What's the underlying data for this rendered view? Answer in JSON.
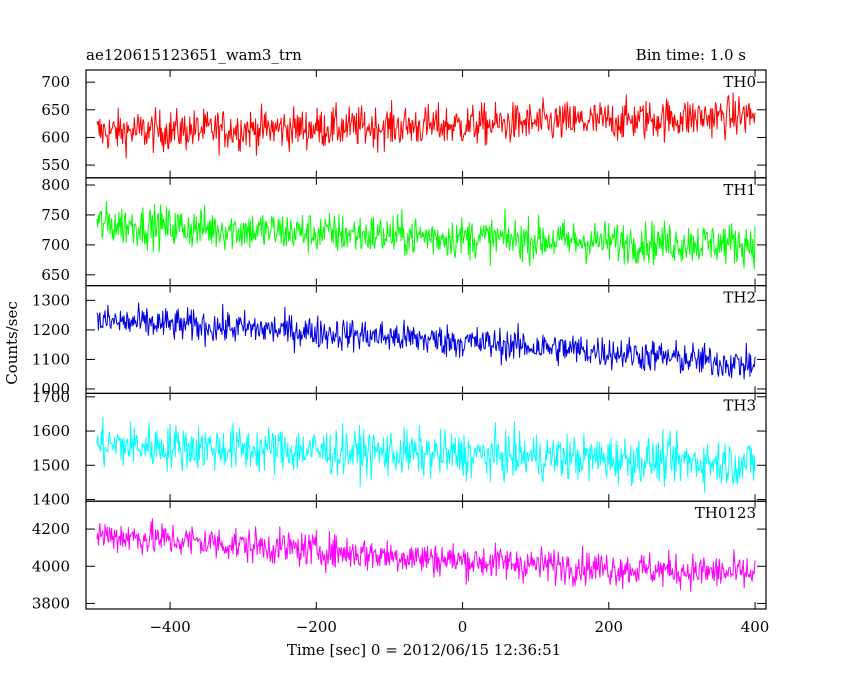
{
  "chart_data": {
    "type": "line",
    "title": "ae120615123651_wam3_trn",
    "subtitle": "Bin time: 1.0 s",
    "xlabel": "Time [sec] 0 = 2012/06/15 12:36:51",
    "ylabel": "Counts/sec",
    "xlim": [
      -515,
      415
    ],
    "x_range_data": [
      -500,
      400
    ],
    "xticks": [
      -400,
      -200,
      0,
      200,
      400
    ],
    "xtick_labels": [
      "−400",
      "−200",
      "0",
      "200",
      "400"
    ],
    "bin_seconds": 1.0,
    "panels": [
      {
        "name": "TH0",
        "color": "#ff0000",
        "ylim": [
          527,
          722
        ],
        "yticks": [
          550,
          600,
          650,
          700
        ],
        "ytick_labels": [
          "550",
          "600",
          "650",
          "700"
        ],
        "trend": {
          "x": [
            -500,
            -250,
            0,
            200,
            400
          ],
          "y": [
            610,
            616,
            622,
            630,
            640
          ]
        },
        "noise_amplitude": 30
      },
      {
        "name": "TH1",
        "color": "#00ff00",
        "ylim": [
          632,
          812
        ],
        "yticks": [
          650,
          700,
          750,
          800
        ],
        "ytick_labels": [
          "650",
          "700",
          "750",
          "800"
        ],
        "trend": {
          "x": [
            -500,
            -250,
            0,
            200,
            400
          ],
          "y": [
            735,
            722,
            712,
            705,
            702
          ]
        },
        "noise_amplitude": 28
      },
      {
        "name": "TH2",
        "color": "#0000e0",
        "ylim": [
          985,
          1350
        ],
        "yticks": [
          1000,
          1100,
          1200,
          1300
        ],
        "ytick_labels": [
          "1000",
          "1100",
          "1200",
          "1300"
        ],
        "trend": {
          "x": [
            -500,
            -250,
            0,
            200,
            400
          ],
          "y": [
            1230,
            1200,
            1160,
            1125,
            1080
          ]
        },
        "noise_amplitude": 45
      },
      {
        "name": "TH3",
        "color": "#00ffff",
        "ylim": [
          1395,
          1710
        ],
        "yticks": [
          1400,
          1500,
          1600,
          1700
        ],
        "ytick_labels": [
          "1400",
          "1500",
          "1600",
          "1700"
        ],
        "trend": {
          "x": [
            -500,
            -250,
            0,
            200,
            400
          ],
          "y": [
            1560,
            1545,
            1530,
            1520,
            1505
          ]
        },
        "noise_amplitude": 55
      },
      {
        "name": "TH0123",
        "color": "#ff00ff",
        "ylim": [
          3770,
          4350
        ],
        "yticks": [
          3800,
          4000,
          4200
        ],
        "ytick_labels": [
          "3800",
          "4000",
          "4200"
        ],
        "trend": {
          "x": [
            -500,
            -250,
            0,
            200,
            400
          ],
          "y": [
            4170,
            4100,
            4030,
            3990,
            3960
          ]
        },
        "noise_amplitude": 75
      }
    ]
  }
}
